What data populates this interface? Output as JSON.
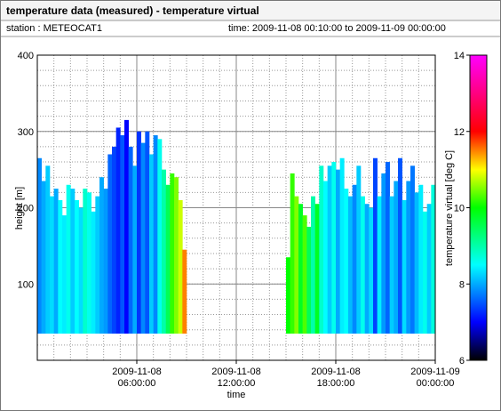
{
  "chart_data": {
    "type": "heatmap",
    "title": "temperature data (measured) - temperature virtual",
    "station": "station : METEOCAT1",
    "period": "time: 2009-11-08 00:10:00 to 2009-11-09 00:00:00",
    "x_label": "time",
    "y_label": "height [m]",
    "colorbar_label": "temperature virtual [deg C]",
    "xlim": [
      0,
      24
    ],
    "xticks": [
      {
        "value": 6,
        "label": [
          "2009-11-08",
          "06:00:00"
        ]
      },
      {
        "value": 12,
        "label": [
          "2009-11-08",
          "12:00:00"
        ]
      },
      {
        "value": 18,
        "label": [
          "2009-11-08",
          "18:00:00"
        ]
      },
      {
        "value": 24,
        "label": [
          "2009-11-09",
          "00:00:00"
        ]
      }
    ],
    "ylim": [
      0,
      400
    ],
    "yticks": [
      100,
      200,
      300,
      400
    ],
    "x_minor_step": 1,
    "y_minor_step": 20,
    "clim": [
      6,
      14
    ],
    "cticks": [
      6,
      8,
      10,
      12,
      14
    ],
    "colorscale": [
      [
        6,
        "#000000"
      ],
      [
        7,
        "#0000ff"
      ],
      [
        8.5,
        "#00ffff"
      ],
      [
        10,
        "#00ff00"
      ],
      [
        11,
        "#ffff00"
      ],
      [
        12,
        "#ff0000"
      ],
      [
        14,
        "#ff00ff"
      ]
    ],
    "cell_width": 0.25,
    "bottom": 35,
    "x": [
      0,
      0.25,
      0.5,
      0.75,
      1,
      1.25,
      1.5,
      1.75,
      2,
      2.25,
      2.5,
      2.75,
      3,
      3.25,
      3.5,
      3.75,
      4,
      4.25,
      4.5,
      4.75,
      5,
      5.25,
      5.5,
      5.75,
      6,
      6.25,
      6.5,
      6.75,
      7,
      7.25,
      7.5,
      7.75,
      8,
      8.25,
      8.5,
      8.75,
      15,
      15.25,
      15.5,
      15.75,
      16,
      16.25,
      16.5,
      16.75,
      17,
      17.25,
      17.5,
      17.75,
      18,
      18.25,
      18.5,
      18.75,
      19,
      19.25,
      19.5,
      19.75,
      20,
      20.25,
      20.5,
      20.75,
      21,
      21.25,
      21.5,
      21.75,
      22,
      22.25,
      22.5,
      22.75,
      23,
      23.25,
      23.5,
      23.75
    ],
    "top": [
      265,
      235,
      255,
      215,
      225,
      210,
      190,
      230,
      225,
      210,
      200,
      225,
      220,
      195,
      215,
      240,
      225,
      270,
      280,
      305,
      295,
      315,
      280,
      255,
      300,
      285,
      300,
      270,
      295,
      290,
      250,
      230,
      245,
      240,
      210,
      145,
      135,
      245,
      215,
      205,
      190,
      175,
      215,
      205,
      255,
      235,
      255,
      260,
      250,
      265,
      225,
      215,
      230,
      255,
      215,
      205,
      200,
      265,
      215,
      245,
      260,
      215,
      235,
      265,
      210,
      235,
      255,
      220,
      230,
      195,
      205,
      230
    ],
    "values": [
      7.8,
      8.0,
      8.2,
      8.3,
      8.0,
      8.5,
      8.4,
      8.6,
      8.2,
      8.5,
      8.3,
      8.8,
      8.6,
      8.4,
      8.2,
      8.0,
      7.9,
      7.6,
      7.4,
      7.2,
      7.5,
      7.0,
      7.6,
      8.0,
      7.3,
      7.8,
      7.5,
      8.2,
      7.8,
      8.6,
      9.0,
      9.5,
      10.2,
      10.5,
      10.8,
      11.5,
      10.0,
      10.2,
      10.5,
      9.8,
      10.3,
      9.5,
      9.0,
      9.8,
      8.8,
      8.5,
      8.2,
      8.6,
      8.0,
      8.4,
      8.5,
      8.1,
      7.8,
      8.2,
      8.6,
      8.0,
      8.3,
      7.4,
      8.4,
      7.9,
      7.6,
      8.2,
      8.0,
      7.5,
      8.3,
      7.9,
      7.7,
      8.1,
      8.4,
      8.6,
      8.2,
      8.7
    ]
  }
}
